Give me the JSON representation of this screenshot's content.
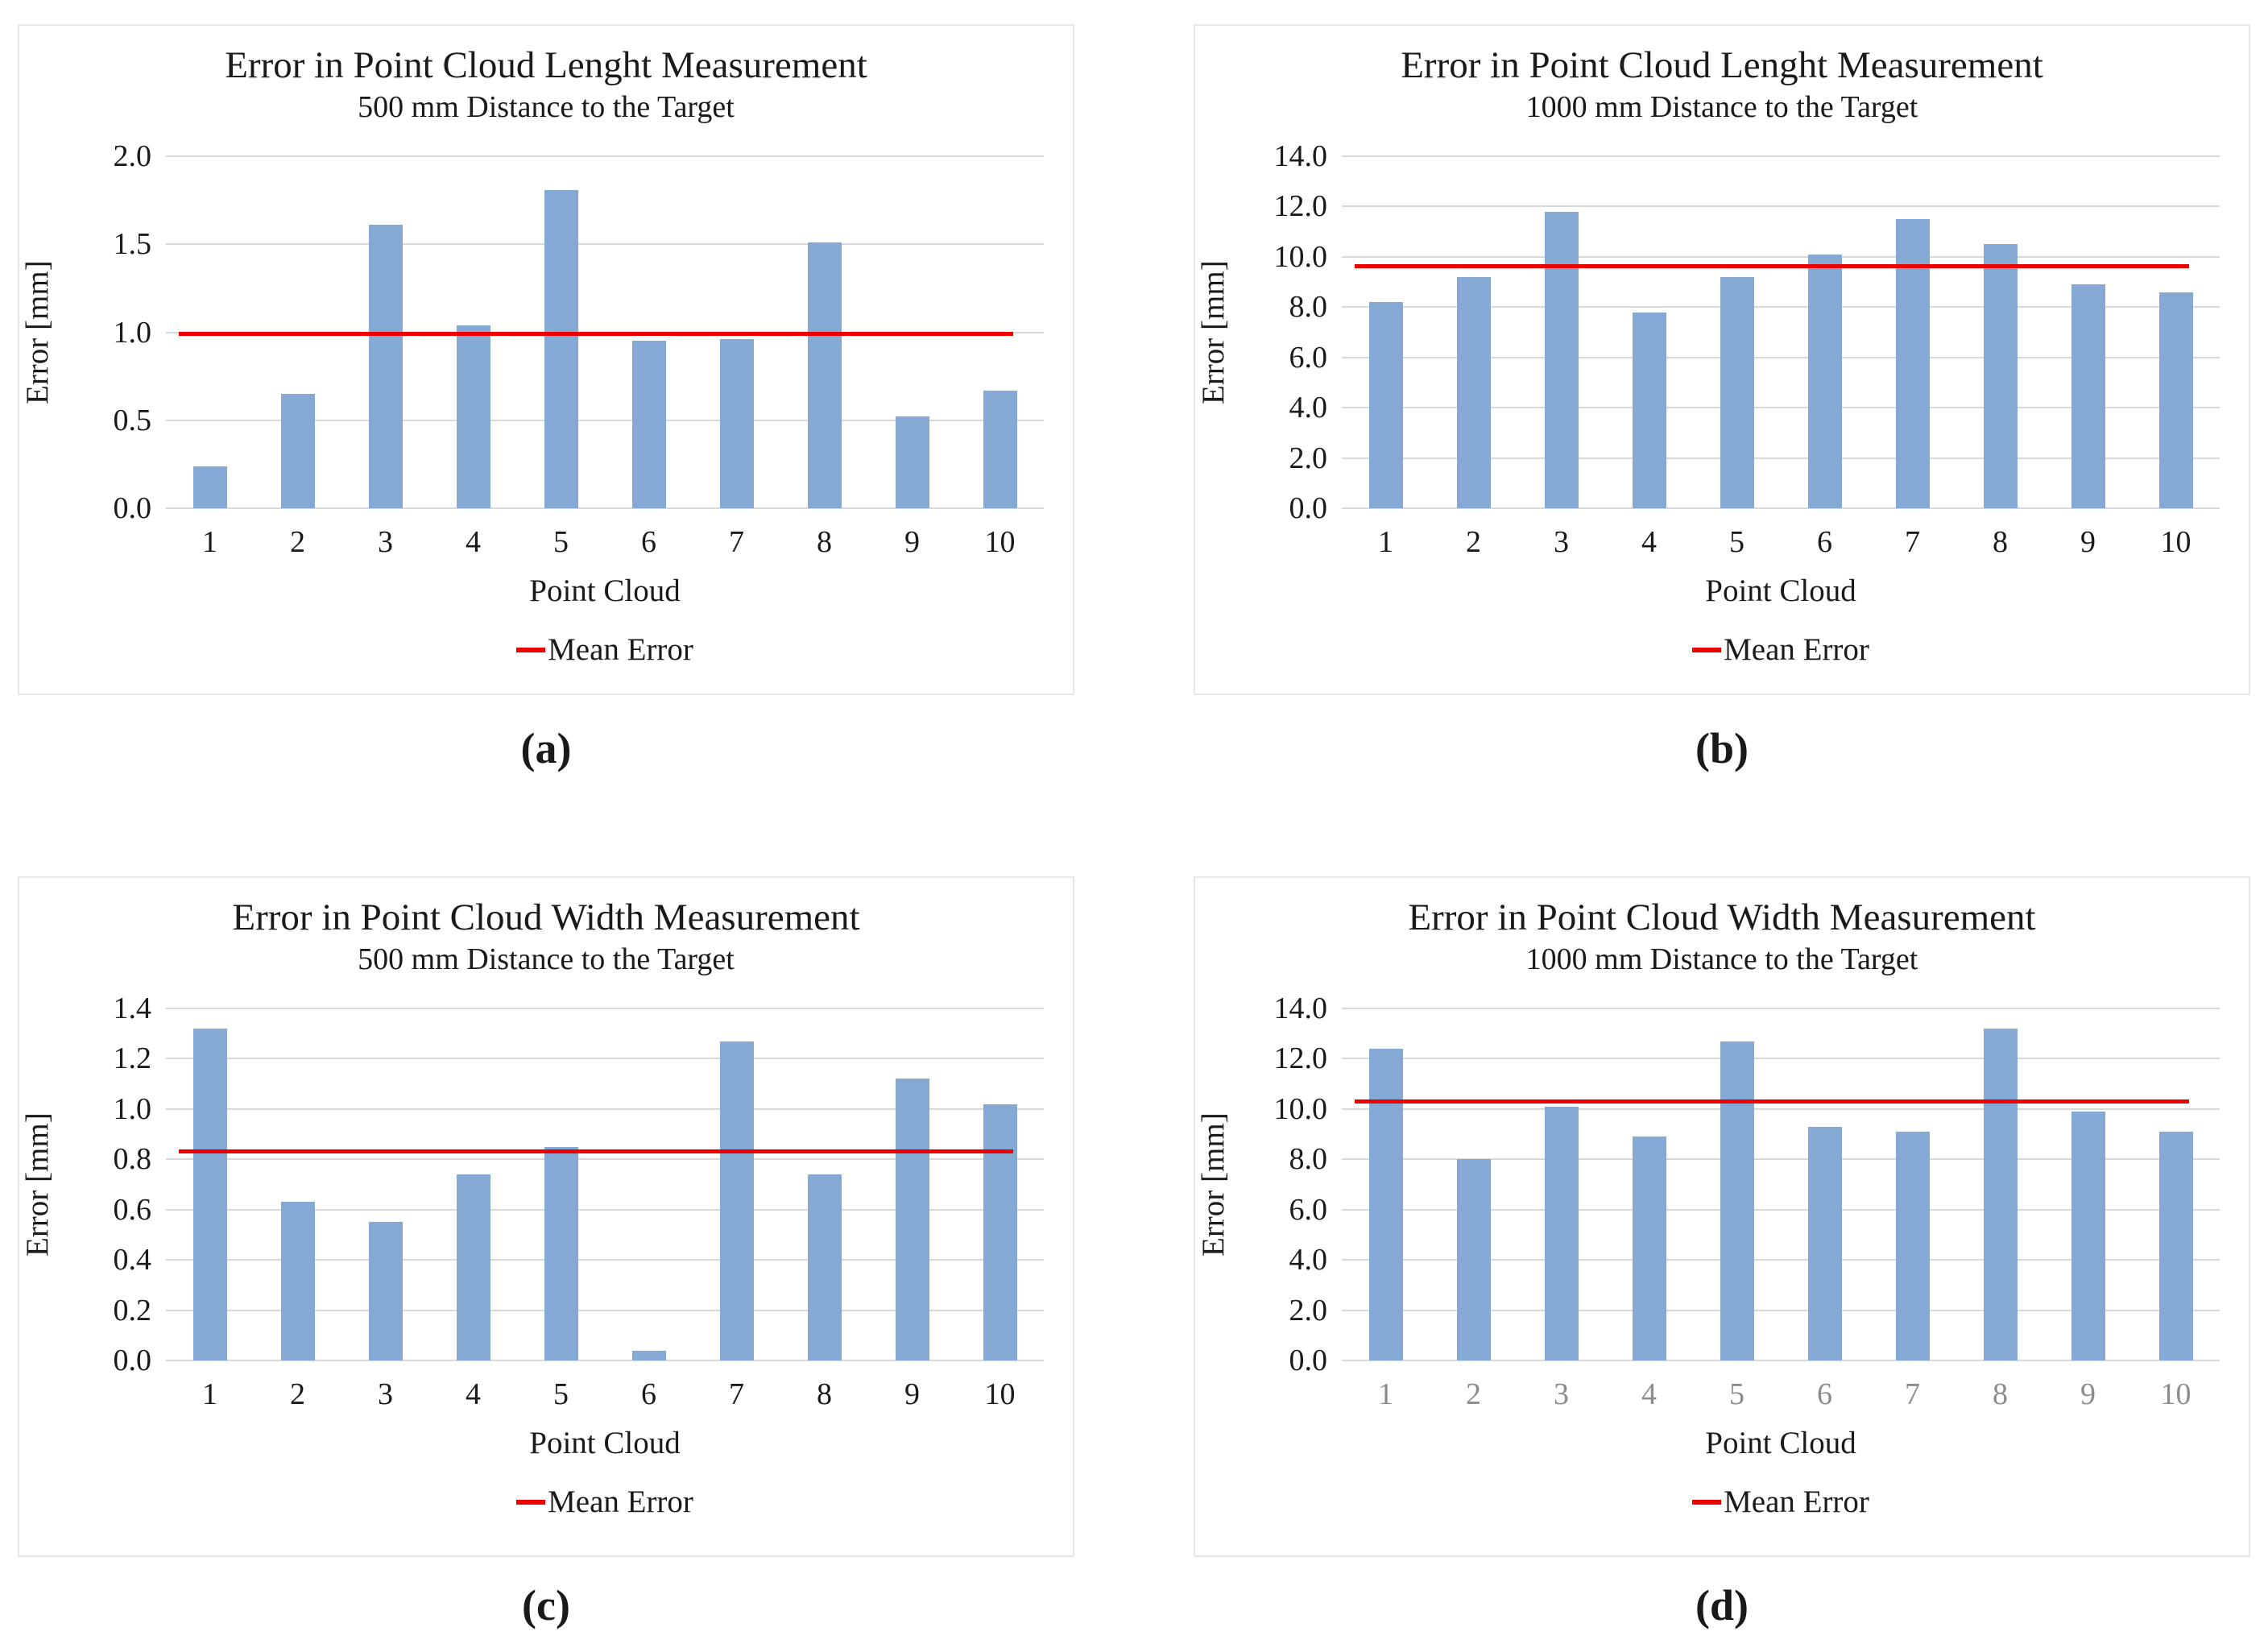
{
  "colors": {
    "bar": "#84a9d4",
    "mean_line": "#ee0000",
    "gridline": "#d9d9d9",
    "text": "#1a1a1a",
    "gray_tick": "#8c8c8c",
    "panel_border": "#e6e6e6"
  },
  "chart_data": [
    {
      "type": "bar",
      "title": "Error in Point Cloud Lenght Measurement",
      "subtitle": "500 mm Distance to the Target",
      "ylabel": "Error [mm]",
      "xlabel": "Point Cloud",
      "legend_label": "Mean Error",
      "caption": "(a)",
      "categories": [
        "1",
        "2",
        "3",
        "4",
        "5",
        "6",
        "7",
        "8",
        "9",
        "10"
      ],
      "values": [
        0.24,
        0.65,
        1.61,
        1.04,
        1.81,
        0.95,
        0.96,
        1.51,
        0.52,
        0.67
      ],
      "mean_error": 0.99,
      "ylim": [
        0,
        2.0
      ],
      "y_ticks": [
        2.0,
        1.5,
        1.0,
        0.5,
        0.0
      ],
      "y_tick_labels": [
        "2.0",
        "1.5",
        "1.0",
        "0.5",
        "0.0"
      ],
      "x_tick_color": "black",
      "grid": true,
      "legend_position": "bottom"
    },
    {
      "type": "bar",
      "title": "Error in Point Cloud Lenght Measurement",
      "subtitle": "1000 mm Distance to the Target",
      "ylabel": "Error [mm]",
      "xlabel": "Point Cloud",
      "legend_label": "Mean Error",
      "caption": "(b)",
      "categories": [
        "1",
        "2",
        "3",
        "4",
        "5",
        "6",
        "7",
        "8",
        "9",
        "10"
      ],
      "values": [
        8.2,
        9.2,
        11.8,
        7.8,
        9.2,
        10.1,
        11.5,
        10.5,
        8.9,
        8.6
      ],
      "mean_error": 9.6,
      "ylim": [
        0,
        14.0
      ],
      "y_ticks": [
        14.0,
        12.0,
        10.0,
        8.0,
        6.0,
        4.0,
        2.0,
        0.0
      ],
      "y_tick_labels": [
        "14.0",
        "12.0",
        "10.0",
        "8.0",
        "6.0",
        "4.0",
        "2.0",
        "0.0"
      ],
      "x_tick_color": "black",
      "grid": true,
      "legend_position": "bottom"
    },
    {
      "type": "bar",
      "title": "Error in Point Cloud Width Measurement",
      "subtitle": "500 mm Distance to the Target",
      "ylabel": "Error [mm]",
      "xlabel": "Point Cloud",
      "legend_label": "Mean Error",
      "caption": "(c)",
      "categories": [
        "1",
        "2",
        "3",
        "4",
        "5",
        "6",
        "7",
        "8",
        "9",
        "10"
      ],
      "values": [
        1.32,
        0.63,
        0.55,
        0.74,
        0.85,
        0.04,
        1.27,
        0.74,
        1.12,
        1.02
      ],
      "mean_error": 0.83,
      "ylim": [
        0,
        1.4
      ],
      "y_ticks": [
        1.4,
        1.2,
        1.0,
        0.8,
        0.6,
        0.4,
        0.2,
        0.0
      ],
      "y_tick_labels": [
        "1.4",
        "1.2",
        "1.0",
        "0.8",
        "0.6",
        "0.4",
        "0.2",
        "0.0"
      ],
      "x_tick_color": "black",
      "grid": true,
      "legend_position": "bottom"
    },
    {
      "type": "bar",
      "title": "Error in Point Cloud Width Measurement",
      "subtitle": "1000 mm Distance to the Target",
      "ylabel": "Error [mm]",
      "xlabel": "Point Cloud",
      "legend_label": "Mean Error",
      "caption": "(d)",
      "categories": [
        "1",
        "2",
        "3",
        "4",
        "5",
        "6",
        "7",
        "8",
        "9",
        "10"
      ],
      "values": [
        12.4,
        8.0,
        10.1,
        8.9,
        12.7,
        9.3,
        9.1,
        13.2,
        9.9,
        9.1
      ],
      "mean_error": 10.3,
      "ylim": [
        0,
        14.0
      ],
      "y_ticks": [
        14.0,
        12.0,
        10.0,
        8.0,
        6.0,
        4.0,
        2.0,
        0.0
      ],
      "y_tick_labels": [
        "14.0",
        "12.0",
        "10.0",
        "8.0",
        "6.0",
        "4.0",
        "2.0",
        "0.0"
      ],
      "x_tick_color": "gray",
      "grid": true,
      "legend_position": "bottom"
    }
  ]
}
